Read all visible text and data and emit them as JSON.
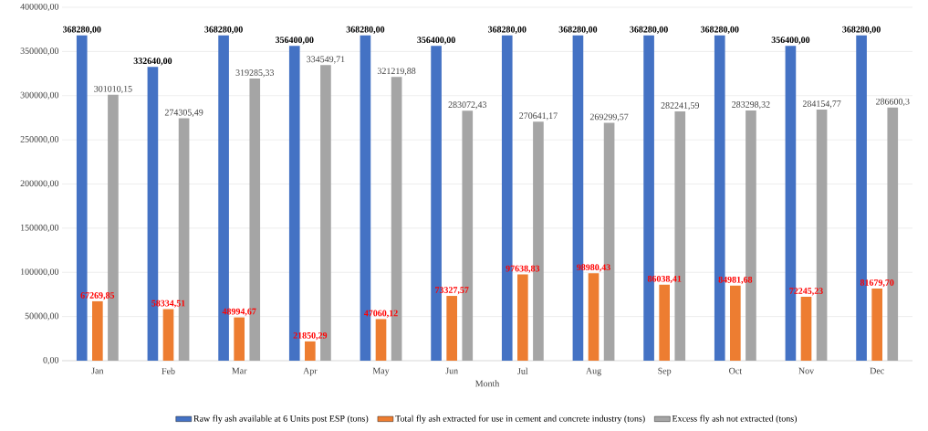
{
  "chart_data": {
    "type": "bar",
    "xlabel": "Month",
    "categories": [
      "Jan",
      "Feb",
      "Mar",
      "Apr",
      "May",
      "Jun",
      "Jul",
      "Aug",
      "Sep",
      "Oct",
      "Nov",
      "Dec"
    ],
    "series": [
      {
        "name": "Raw fly ash available at 6 Units post ESP (tons)",
        "color": "#4472c4",
        "values": [
          368280,
          332640,
          368280,
          356400,
          368280,
          356400,
          368280,
          368280,
          368280,
          368280,
          356400,
          368280
        ],
        "value_labels": [
          "368280,00",
          "332640,00",
          "368280,00",
          "356400,00",
          "368280,00",
          "356400,00",
          "368280,00",
          "368280,00",
          "368280,00",
          "368280,00",
          "356400,00",
          "368280,00"
        ]
      },
      {
        "name": "Total fly ash extracted for use in cement and concrete industry (tons)",
        "color": "#ed7d31",
        "values": [
          67269.85,
          58334.51,
          48994.67,
          21850.29,
          47060.12,
          73327.57,
          97638.83,
          98980.43,
          86038.41,
          84981.68,
          72245.23,
          81679.7
        ],
        "value_labels": [
          "67269,85",
          "58334,51",
          "48994,67",
          "21850,29",
          "47060,12",
          "73327,57",
          "97638,83",
          "98980,43",
          "86038,41",
          "84981,68",
          "72245,23",
          "81679,70"
        ]
      },
      {
        "name": "Excess fly ash not extracted (tons)",
        "color": "#a5a5a5",
        "values": [
          301010.15,
          274305.49,
          319285.33,
          334549.71,
          321219.88,
          283072.43,
          270641.17,
          269299.57,
          282241.59,
          283298.32,
          284154.77,
          286600.3
        ],
        "value_labels": [
          "301010,15",
          "274305,49",
          "319285,33",
          "334549,71",
          "321219,88",
          "283072,43",
          "270641,17",
          "269299,57",
          "282241,59",
          "283298,32",
          "284154,77",
          "286600,3"
        ]
      }
    ],
    "ylim": [
      0,
      400000
    ],
    "yticks": [
      {
        "value": 0,
        "label": "0,00"
      },
      {
        "value": 50000,
        "label": "50000,00"
      },
      {
        "value": 100000,
        "label": "100000,00"
      },
      {
        "value": 150000,
        "label": "150000,00"
      },
      {
        "value": 200000,
        "label": "200000,00"
      },
      {
        "value": 250000,
        "label": "250000,00"
      },
      {
        "value": 300000,
        "label": "300000,00"
      },
      {
        "value": 350000,
        "label": "350000,00"
      },
      {
        "value": 400000,
        "label": "400000,00"
      }
    ],
    "grid": "y",
    "legend": "bottom"
  }
}
